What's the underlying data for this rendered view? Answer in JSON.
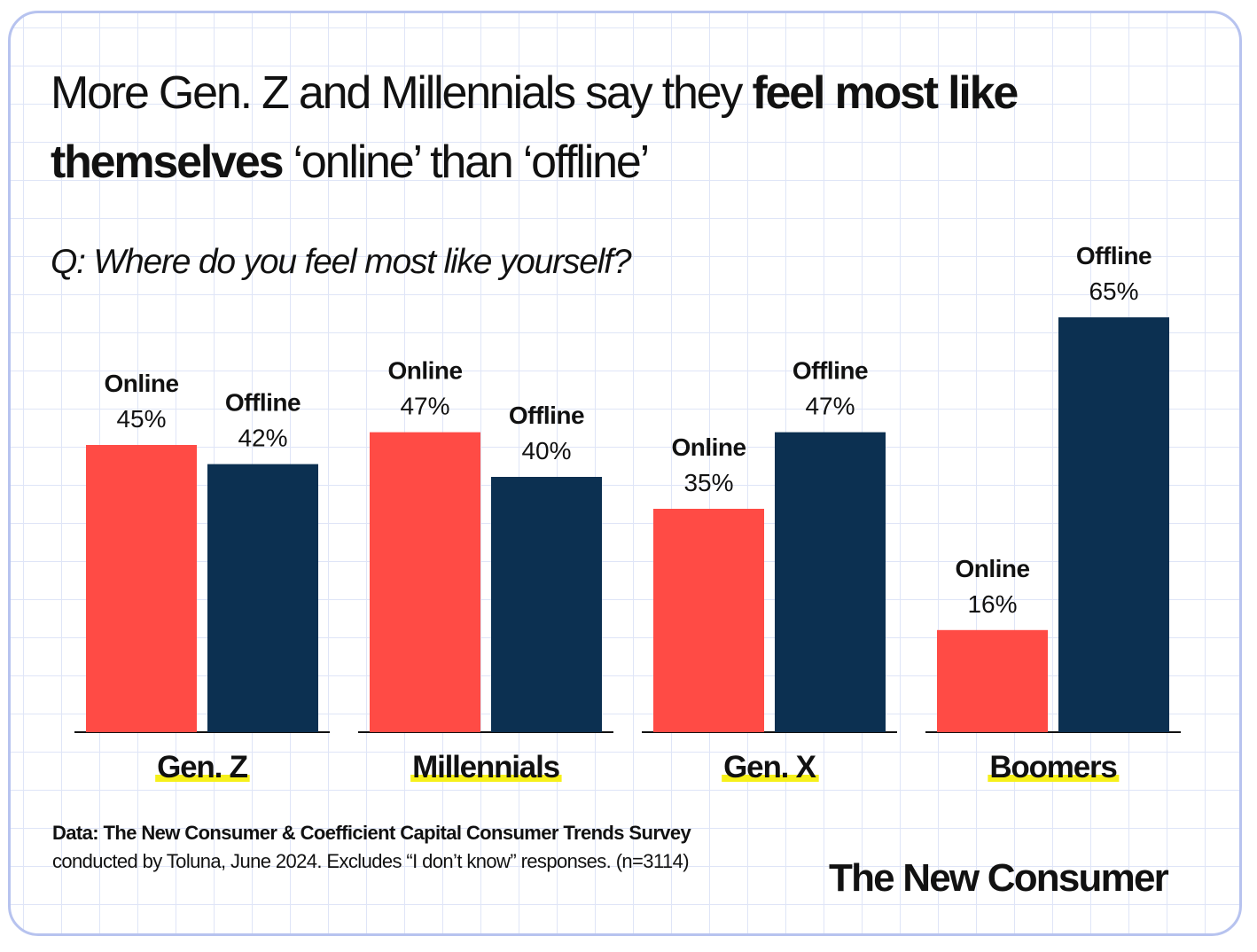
{
  "title": {
    "part1": "More Gen. Z and Millennials say they ",
    "bold": "feel most like themselves",
    "part2": " ‘online’ than ‘offline’"
  },
  "question": "Q: Where do you feel most like yourself?",
  "chart_data": {
    "type": "bar",
    "categories": [
      "Gen. Z",
      "Millennials",
      "Gen. X",
      "Boomers"
    ],
    "series": [
      {
        "name": "Online",
        "color": "#ff4b45",
        "values": [
          45,
          47,
          35,
          16
        ],
        "labels": [
          "45%",
          "47%",
          "35%",
          "16%"
        ]
      },
      {
        "name": "Offline",
        "color": "#0c3051",
        "values": [
          42,
          40,
          47,
          65
        ],
        "labels": [
          "42%",
          "40%",
          "47%",
          "65%"
        ]
      }
    ],
    "ylim": [
      0,
      65
    ],
    "value_unit": "%",
    "category_highlight_color": "#f6f01a",
    "grid": false
  },
  "footnote": {
    "bold": "Data: The New Consumer & Coefficient Capital Consumer Trends Survey",
    "rest": " conducted by Toluna, June 2024. Excludes “I don’t know” responses. (n=3114)"
  },
  "brand": "The New Consumer"
}
